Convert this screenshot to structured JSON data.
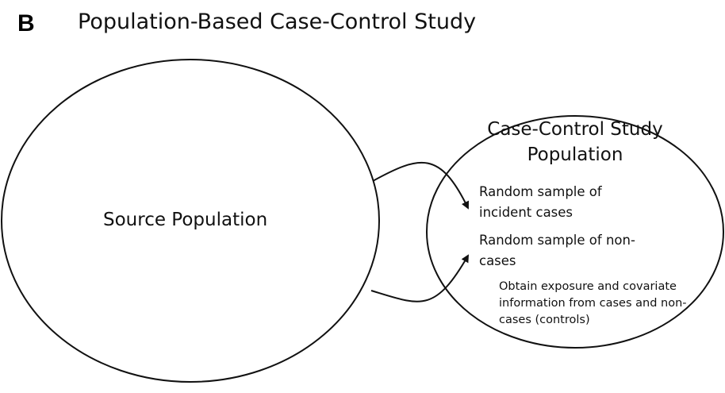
{
  "panel": {
    "letter": "B",
    "title": "Population-Based Case-Control Study"
  },
  "source_population": {
    "label": "Source Population"
  },
  "study_population": {
    "title": "Case-Control Study Population",
    "items": [
      "Random sample of incident cases",
      "Random sample of non-cases",
      "Obtain exposure and covariate information from cases and non-cases (controls)"
    ]
  },
  "colors": {
    "stroke": "#111111",
    "background": "#ffffff"
  }
}
